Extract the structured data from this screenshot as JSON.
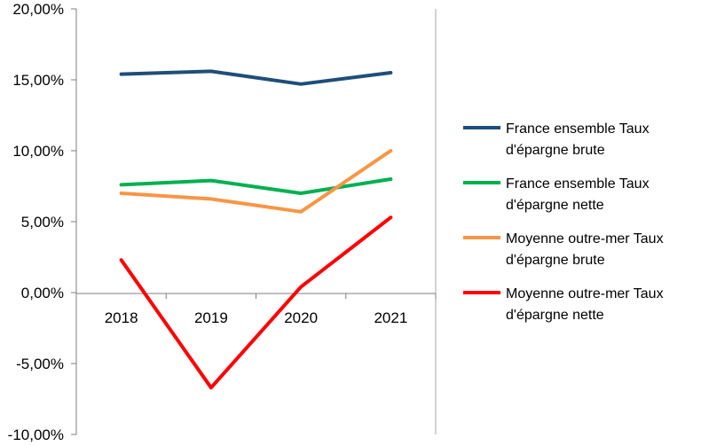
{
  "chart_data": {
    "type": "line",
    "categories": [
      "2018",
      "2019",
      "2020",
      "2021"
    ],
    "y_ticks": [
      "20,00%",
      "15,00%",
      "10,00%",
      "5,00%",
      "0,00%",
      "-5,00%",
      "-10,00%"
    ],
    "ylim": [
      -10,
      20
    ],
    "y_unit": "%",
    "grid": false,
    "legend_position": "right",
    "series": [
      {
        "name": "France ensemble  Taux d'épargne brute",
        "legend_lines": [
          "France ensemble  Taux",
          "d'épargne brute"
        ],
        "color": "#1f4e79",
        "values": [
          15.4,
          15.6,
          14.7,
          15.5
        ]
      },
      {
        "name": "France ensemble  Taux d'épargne nette",
        "legend_lines": [
          "France ensemble  Taux",
          "d'épargne nette"
        ],
        "color": "#00b050",
        "values": [
          7.6,
          7.9,
          7.0,
          8.0
        ]
      },
      {
        "name": "Moyenne outre-mer Taux d'épargne brute",
        "legend_lines": [
          "Moyenne outre-mer Taux",
          "d'épargne brute"
        ],
        "color": "#f79646",
        "values": [
          7.0,
          6.6,
          5.7,
          10.0
        ]
      },
      {
        "name": "Moyenne outre-mer Taux d'épargne nette",
        "legend_lines": [
          "Moyenne outre-mer Taux",
          "d'épargne nette"
        ],
        "color": "#ff0000",
        "values": [
          2.3,
          -6.7,
          0.4,
          5.3
        ]
      }
    ]
  }
}
